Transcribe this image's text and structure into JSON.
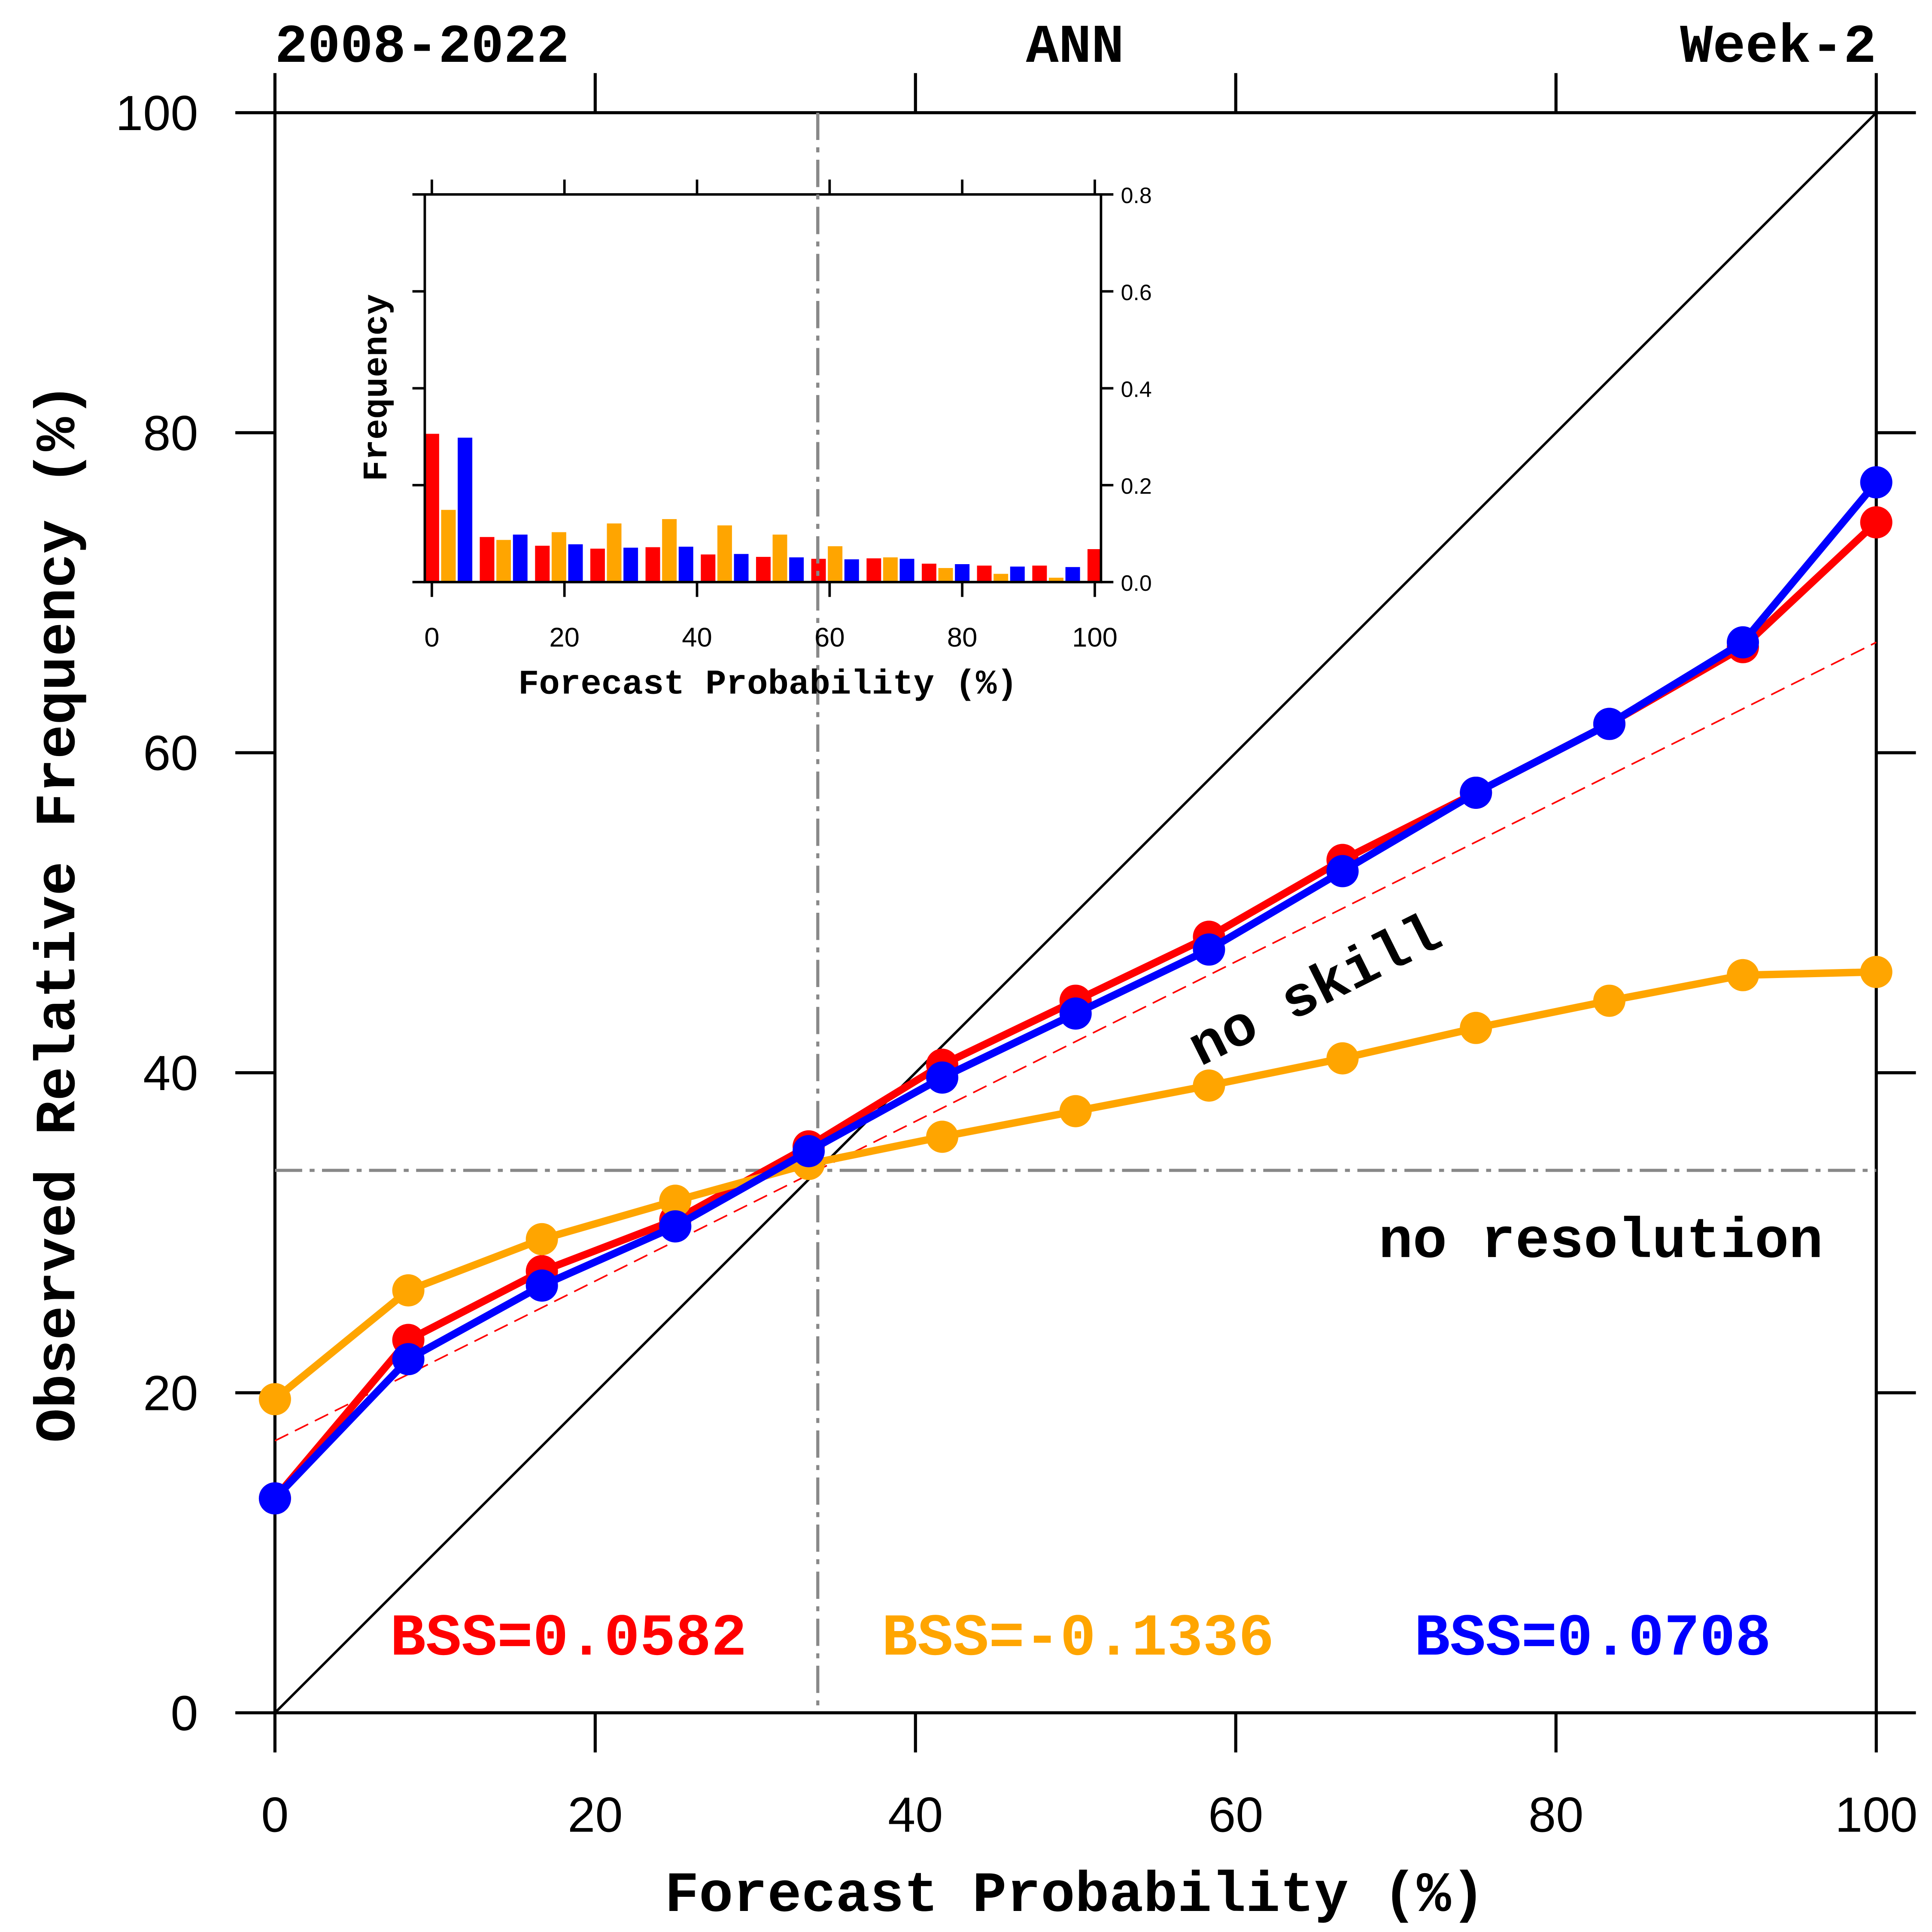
{
  "chart_data": [
    {
      "type": "line",
      "header": {
        "left": "2008-2022",
        "center": "ANN",
        "right": "Week-2"
      },
      "xlabel": "Forecast Probability (%)",
      "ylabel": "Observed Relative Frequency (%)",
      "xlim": [
        0,
        100
      ],
      "ylim": [
        0,
        100
      ],
      "xticks": [
        "0",
        "20",
        "40",
        "60",
        "80",
        "100"
      ],
      "yticks": [
        "0",
        "20",
        "40",
        "60",
        "80",
        "100"
      ],
      "grid": false,
      "x": [
        0,
        8.33,
        16.67,
        25,
        33.33,
        41.67,
        50,
        58.33,
        66.67,
        75,
        83.33,
        91.67,
        100
      ],
      "series": [
        {
          "color": "#ff0000",
          "values": [
            13.4,
            23.3,
            27.6,
            30.8,
            35.4,
            40.5,
            44.5,
            48.5,
            53.3,
            57.5,
            61.8,
            66.6,
            74.4
          ]
        },
        {
          "color": "#ffa500",
          "values": [
            19.6,
            26.4,
            29.6,
            32.0,
            34.3,
            36.0,
            37.6,
            39.2,
            40.9,
            42.8,
            44.5,
            46.1,
            46.3
          ]
        },
        {
          "color": "#0000ff",
          "values": [
            13.4,
            22.1,
            26.7,
            30.4,
            35.1,
            39.7,
            43.7,
            47.7,
            52.6,
            57.5,
            61.8,
            66.9,
            76.9
          ]
        }
      ],
      "reference_lines": {
        "perfect": {
          "from": [
            0,
            0
          ],
          "to": [
            100,
            100
          ],
          "color": "#000000"
        },
        "no_skill": {
          "from": [
            0,
            17.0
          ],
          "to": [
            100,
            66.9
          ],
          "color": "#ff0000",
          "style": "dashed",
          "label": "no skill"
        },
        "climatology": {
          "value": 33.9,
          "color": "#888888",
          "style": "dash-dot",
          "label": "no resolution"
        }
      },
      "annotations": [
        {
          "text": "BSS=0.0582",
          "color": "#ff0000"
        },
        {
          "text": "BSS=-0.1336",
          "color": "#ffa500"
        },
        {
          "text": "BSS=0.0708",
          "color": "#0000ff"
        }
      ]
    },
    {
      "type": "bar",
      "position": "inset",
      "xlabel": "Forecast Probability (%)",
      "ylabel": "Frequency",
      "xlim": [
        0,
        100
      ],
      "ylim": [
        0,
        0.8
      ],
      "xticks": [
        "0",
        "20",
        "40",
        "60",
        "80",
        "100"
      ],
      "yticks": [
        "0.0",
        "0.2",
        "0.4",
        "0.6",
        "0.8"
      ],
      "y_axis_side": "right",
      "x": [
        0,
        8.33,
        16.67,
        25,
        33.33,
        41.67,
        50,
        58.33,
        66.67,
        75,
        83.33,
        91.67,
        100
      ],
      "series": [
        {
          "color": "#ff0000",
          "values": [
            0.306,
            0.093,
            0.075,
            0.069,
            0.072,
            0.057,
            0.052,
            0.048,
            0.049,
            0.038,
            0.034,
            0.034,
            0.068
          ]
        },
        {
          "color": "#ffa500",
          "values": [
            0.149,
            0.087,
            0.103,
            0.121,
            0.13,
            0.117,
            0.098,
            0.074,
            0.051,
            0.029,
            0.017,
            0.009,
            null
          ]
        },
        {
          "color": "#0000ff",
          "values": [
            0.298,
            0.098,
            0.078,
            0.071,
            0.073,
            0.058,
            0.051,
            0.047,
            0.048,
            0.037,
            0.032,
            0.031,
            null
          ]
        }
      ]
    }
  ]
}
